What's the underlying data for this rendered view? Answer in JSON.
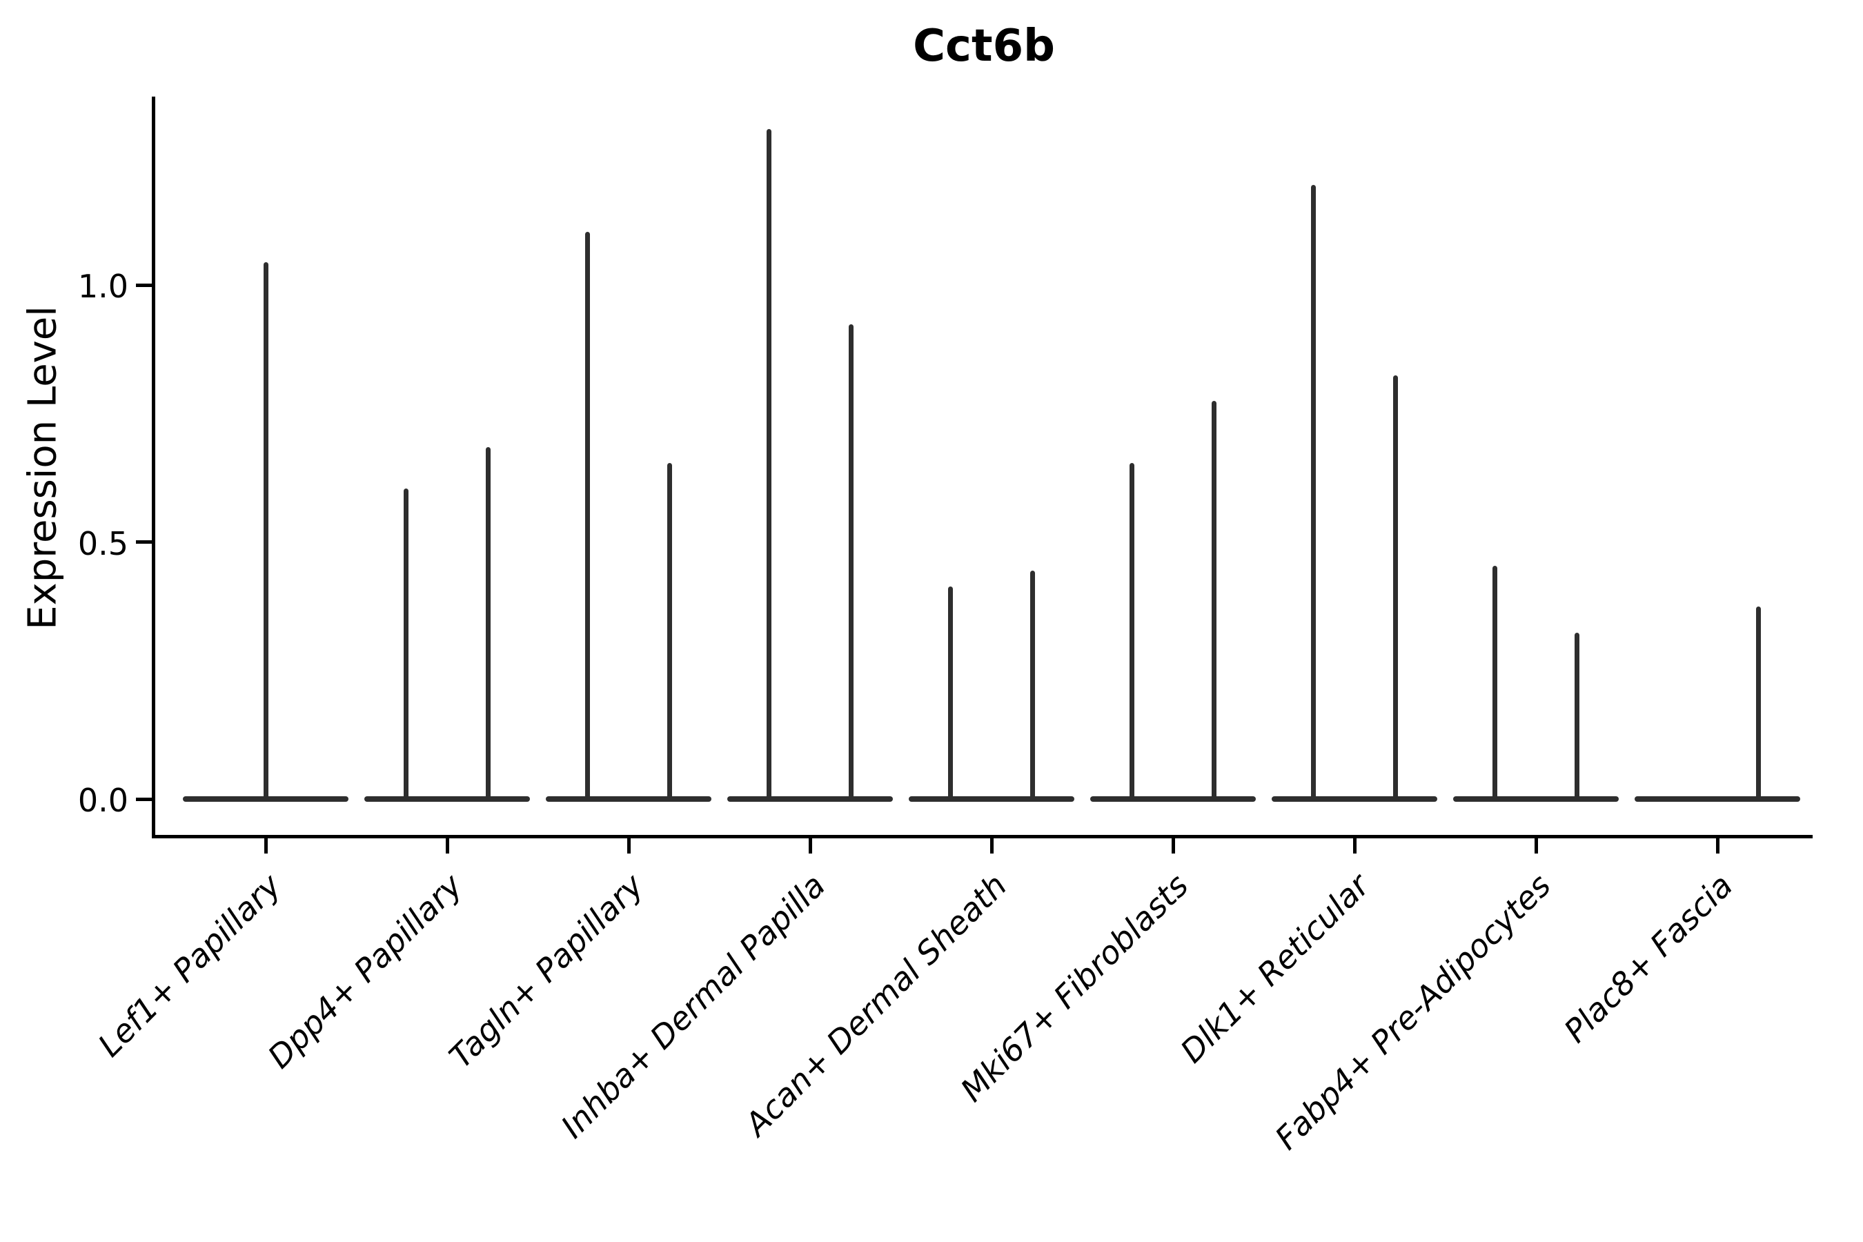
{
  "chart_data": {
    "type": "violin",
    "title": "Cct6b",
    "ylabel": "Expression Level",
    "xlabel": "",
    "yticks": [
      {
        "value": 0.0,
        "label": "0.0"
      },
      {
        "value": 0.5,
        "label": "0.5"
      },
      {
        "value": 1.0,
        "label": "1.0"
      }
    ],
    "ylim": [
      -0.07,
      1.37
    ],
    "grid": false,
    "legend": "none",
    "violin_color": "#2e2e2e",
    "axis_color": "#000000",
    "background_color": "#ffffff",
    "categories": [
      {
        "label": "Lef1+ Papillary",
        "violins": [
          {
            "slot": "center",
            "max": 1.04
          }
        ]
      },
      {
        "label": "Dpp4+ Papillary",
        "violins": [
          {
            "slot": "left",
            "max": 0.6
          },
          {
            "slot": "right",
            "max": 0.68
          }
        ]
      },
      {
        "label": "Tagln+ Papillary",
        "violins": [
          {
            "slot": "left",
            "max": 1.1
          },
          {
            "slot": "right",
            "max": 0.65
          }
        ]
      },
      {
        "label": "Inhba+ Dermal Papilla",
        "violins": [
          {
            "slot": "left",
            "max": 1.3
          },
          {
            "slot": "right",
            "max": 0.92
          }
        ]
      },
      {
        "label": "Acan+ Dermal Sheath",
        "violins": [
          {
            "slot": "left",
            "max": 0.41
          },
          {
            "slot": "right",
            "max": 0.44
          }
        ]
      },
      {
        "label": "Mki67+ Fibroblasts",
        "violins": [
          {
            "slot": "left",
            "max": 0.65
          },
          {
            "slot": "right",
            "max": 0.77
          }
        ]
      },
      {
        "label": "Dlk1+ Reticular",
        "violins": [
          {
            "slot": "left",
            "max": 1.19
          },
          {
            "slot": "right",
            "max": 0.82
          }
        ]
      },
      {
        "label": "Fabp4+ Pre-Adipocytes",
        "violins": [
          {
            "slot": "left",
            "max": 0.45
          },
          {
            "slot": "right",
            "max": 0.32
          }
        ]
      },
      {
        "label": "Plac8+ Fascia",
        "violins": [
          {
            "slot": "right",
            "max": 0.37
          }
        ]
      }
    ],
    "note_all_violins_baseline_value": 0.0
  }
}
